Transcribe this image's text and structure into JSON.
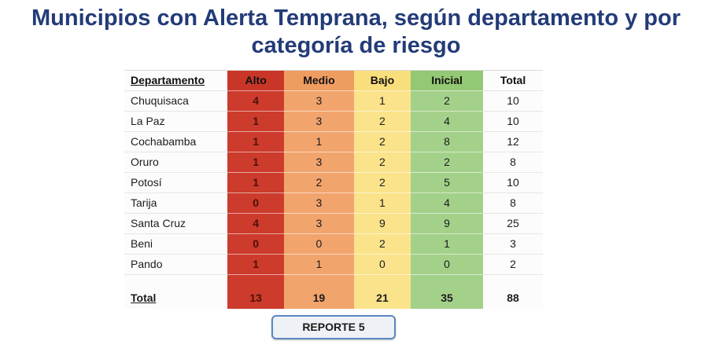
{
  "title": "Municipios con Alerta Temprana, según departamento y por categoría de riesgo",
  "button": {
    "label": "REPORTE 5"
  },
  "colors": {
    "title_blue": "#233b78",
    "alto_red": "#cc3b2c",
    "medio_orange": "#f2a46d",
    "bajo_yellow": "#fbe38b",
    "inicial_green": "#a4d18a",
    "button_border_blue": "#5b87c5"
  },
  "chart_data": {
    "type": "table",
    "title": "Municipios con Alerta Temprana, según departamento y por categoría de riesgo",
    "columns": [
      "Departamento",
      "Alto",
      "Medio",
      "Bajo",
      "Inicial",
      "Total"
    ],
    "rows": [
      [
        "Chuquisaca",
        4,
        3,
        1,
        2,
        10
      ],
      [
        "La Paz",
        1,
        3,
        2,
        4,
        10
      ],
      [
        "Cochabamba",
        1,
        1,
        2,
        8,
        12
      ],
      [
        "Oruro",
        1,
        3,
        2,
        2,
        8
      ],
      [
        "Potosí",
        1,
        2,
        2,
        5,
        10
      ],
      [
        "Tarija",
        0,
        3,
        1,
        4,
        8
      ],
      [
        "Santa Cruz",
        4,
        3,
        9,
        9,
        25
      ],
      [
        "Beni",
        0,
        0,
        2,
        1,
        3
      ],
      [
        "Pando",
        1,
        1,
        0,
        0,
        2
      ]
    ],
    "totals": [
      "Total",
      13,
      19,
      21,
      35,
      88
    ]
  }
}
